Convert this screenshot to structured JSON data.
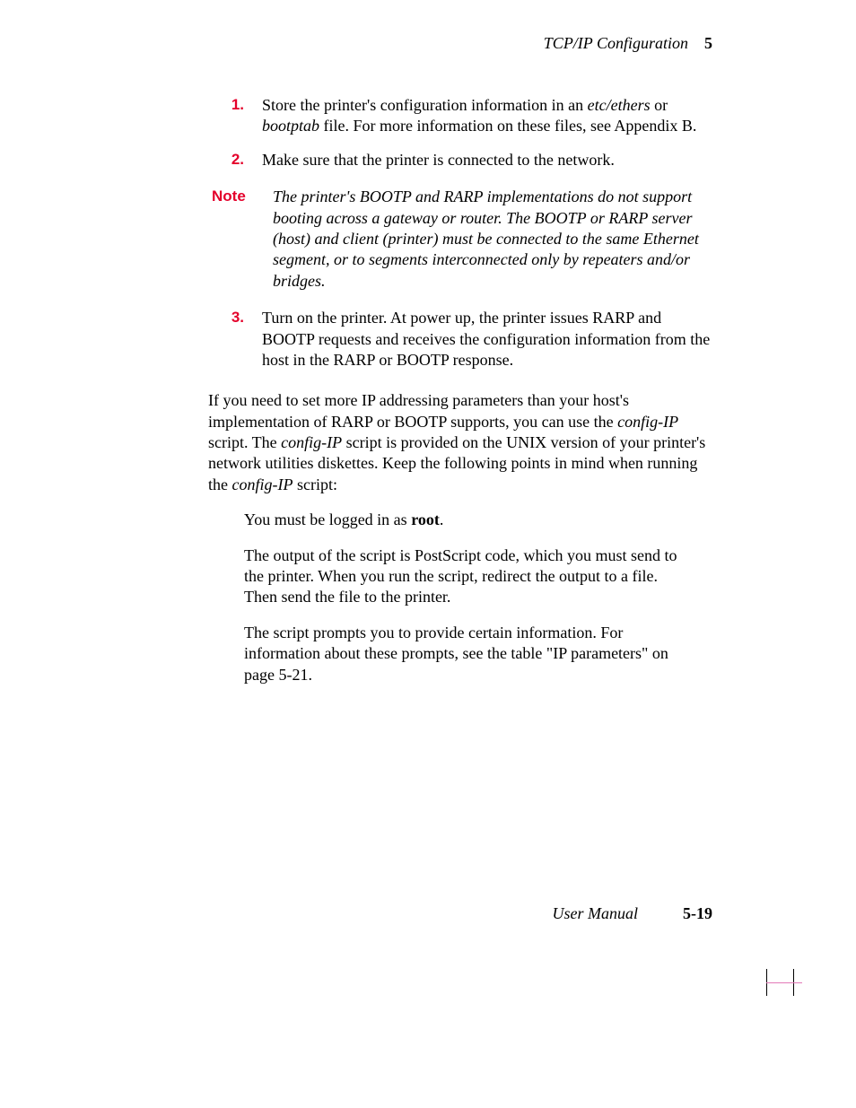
{
  "header": {
    "title": "TCP/IP Configuration",
    "chapter": "5"
  },
  "steps": [
    {
      "n": "1.",
      "pre": "Store the printer's configuration information in an ",
      "i1": "etc/ethers",
      "mid": " or ",
      "i2": "bootptab",
      "post": " file.  For more information on these files, see Appendix B."
    },
    {
      "n": "2.",
      "text": "Make sure that the printer is connected to the network."
    }
  ],
  "note": {
    "label": "Note",
    "text": "The printer's BOOTP and RARP implementations do not support booting across a gateway or router.  The BOOTP or RARP server (host) and client (printer) must be connected to the same Ethernet segment, or to segments interconnected only by repeaters and/or bridges."
  },
  "step3": {
    "n": "3.",
    "text": "Turn on the printer.  At power up, the printer issues RARP and BOOTP requests and receives the configuration information from the host in the RARP or BOOTP response."
  },
  "para": {
    "a": "If you need to set more IP addressing parameters than your host's implementation of RARP or BOOTP supports, you can use the ",
    "i1": "config-IP",
    "b": " script.  The ",
    "i2": "config-IP",
    "c": " script is provided on the UNIX version of your printer's network utilities diskettes.  Keep the following points in mind when running the ",
    "i3": "config-IP",
    "d": " script:"
  },
  "bullets": {
    "b1a": "You must be logged in as ",
    "b1b": "root",
    "b1c": ".",
    "b2": "The output of the script is PostScript code, which you must send to the printer.  When you run the script, redirect the output to a file.  Then send the file to the printer.",
    "b3": "The script prompts you to provide certain information.  For information about these prompts, see the table \"IP parameters\" on page 5-21."
  },
  "footer": {
    "user": "User Manual",
    "page": "5-19"
  },
  "colors": {
    "accent": "#e4002b",
    "text": "#000000",
    "bg": "#ffffff",
    "crop_pink": "#e37ab8"
  }
}
